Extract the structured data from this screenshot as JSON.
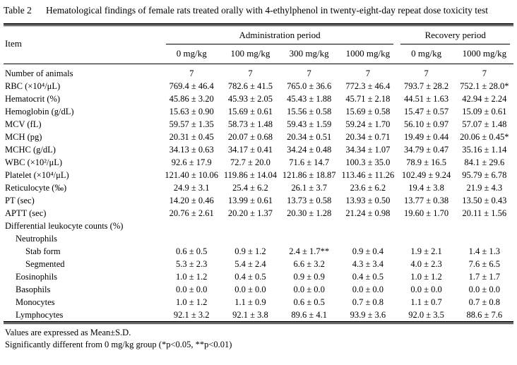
{
  "title": {
    "label": "Table 2",
    "text": "Hematological findings of female rats treated orally with 4-ethylphenol in twenty-eight-day repeat dose toxicity test"
  },
  "header": {
    "item_label": "Item",
    "groups": [
      {
        "label": "Administration period",
        "columns": [
          "0 mg/kg",
          "100 mg/kg",
          "300 mg/kg",
          "1000 mg/kg"
        ]
      },
      {
        "label": "Recovery period",
        "columns": [
          "0 mg/kg",
          "1000 mg/kg"
        ]
      }
    ]
  },
  "rows": [
    {
      "label": "Number of animals",
      "indent": 0,
      "values": [
        "7",
        "7",
        "7",
        "7",
        "7",
        "7"
      ]
    },
    {
      "label": "RBC (×10⁴/μL)",
      "indent": 0,
      "values": [
        "769.4 ± 46.4",
        "782.6 ± 41.5",
        "765.0 ± 36.6",
        "772.3 ± 46.4",
        "793.7 ± 28.2",
        "752.1 ± 28.0*"
      ]
    },
    {
      "label": "Hematocrit (%)",
      "indent": 0,
      "values": [
        "45.86 ± 3.20",
        "45.93 ± 2.05",
        "45.43 ± 1.88",
        "45.71 ± 2.18",
        "44.51 ± 1.63",
        "42.94 ± 2.24"
      ]
    },
    {
      "label": "Hemoglobin (g/dL)",
      "indent": 0,
      "values": [
        "15.63 ± 0.90",
        "15.69 ± 0.61",
        "15.56 ± 0.58",
        "15.69 ± 0.58",
        "15.47 ± 0.57",
        "15.09 ± 0.61"
      ]
    },
    {
      "label": "MCV (fL)",
      "indent": 0,
      "values": [
        "59.57 ± 1.35",
        "58.73 ± 1.48",
        "59.43 ± 1.59",
        "59.24 ± 1.70",
        "56.10 ± 0.97",
        "57.07 ± 1.48"
      ]
    },
    {
      "label": "MCH (pg)",
      "indent": 0,
      "values": [
        "20.31 ± 0.45",
        "20.07 ± 0.68",
        "20.34 ± 0.51",
        "20.34 ± 0.71",
        "19.49 ± 0.44",
        "20.06 ± 0.45*"
      ]
    },
    {
      "label": "MCHC (g/dL)",
      "indent": 0,
      "values": [
        "34.13 ± 0.63",
        "34.17 ± 0.41",
        "34.24 ± 0.48",
        "34.34 ± 1.07",
        "34.79 ± 0.47",
        "35.16 ± 1.14"
      ]
    },
    {
      "label": "WBC (×10²/μL)",
      "indent": 0,
      "values": [
        "92.6 ± 17.9",
        "72.7 ± 20.0",
        "71.6 ± 14.7",
        "100.3 ± 35.0",
        "78.9 ± 16.5",
        "84.1 ± 29.6"
      ]
    },
    {
      "label": "Platelet (×10⁴/μL)",
      "indent": 0,
      "values": [
        "121.40 ± 10.06",
        "119.86 ± 14.04",
        "121.86 ± 18.87",
        "113.46 ± 11.26",
        "102.49 ± 9.24",
        "95.79 ± 6.78"
      ]
    },
    {
      "label": "Reticulocyte (‰)",
      "indent": 0,
      "values": [
        "24.9 ± 3.1",
        "25.4 ± 6.2",
        "26.1 ± 3.7",
        "23.6 ± 6.2",
        "19.4 ± 3.8",
        "21.9 ± 4.3"
      ]
    },
    {
      "label": "PT (sec)",
      "indent": 0,
      "values": [
        "14.20 ± 0.46",
        "13.99 ± 0.61",
        "13.73 ± 0.58",
        "13.93 ± 0.50",
        "13.77 ± 0.38",
        "13.50 ± 0.43"
      ]
    },
    {
      "label": "APTT (sec)",
      "indent": 0,
      "values": [
        "20.76 ± 2.61",
        "20.20 ± 1.37",
        "20.30 ± 1.28",
        "21.24 ± 0.98",
        "19.60 ± 1.70",
        "20.11 ± 1.56"
      ]
    },
    {
      "label": "Differential leukocyte counts (%)",
      "indent": 0,
      "values": [
        "",
        "",
        "",
        "",
        "",
        ""
      ]
    },
    {
      "label": "Neutrophils",
      "indent": 1,
      "values": [
        "",
        "",
        "",
        "",
        "",
        ""
      ]
    },
    {
      "label": "Stab form",
      "indent": 2,
      "values": [
        "0.6 ± 0.5",
        "0.9 ± 1.2",
        "2.4 ± 1.7**",
        "0.9 ± 0.4",
        "1.9 ± 2.1",
        "1.4 ± 1.3"
      ]
    },
    {
      "label": "Segmented",
      "indent": 2,
      "values": [
        "5.3 ± 2.3",
        "5.4 ± 2.4",
        "6.6 ± 3.2",
        "4.3 ± 3.4",
        "4.0 ± 2.3",
        "7.6 ± 6.5"
      ]
    },
    {
      "label": "Eosinophils",
      "indent": 1,
      "values": [
        "1.0 ± 1.2",
        "0.4 ± 0.5",
        "0.9 ± 0.9",
        "0.4 ± 0.5",
        "1.0 ± 1.2",
        "1.7 ± 1.7"
      ]
    },
    {
      "label": "Basophils",
      "indent": 1,
      "values": [
        "0.0 ± 0.0",
        "0.0 ± 0.0",
        "0.0 ± 0.0",
        "0.0 ± 0.0",
        "0.0 ± 0.0",
        "0.0 ± 0.0"
      ]
    },
    {
      "label": "Monocytes",
      "indent": 1,
      "values": [
        "1.0 ± 1.2",
        "1.1 ± 0.9",
        "0.6 ± 0.5",
        "0.7 ± 0.8",
        "1.1 ± 0.7",
        "0.7 ± 0.8"
      ]
    },
    {
      "label": "Lymphocytes",
      "indent": 1,
      "values": [
        "92.1 ± 3.2",
        "92.1 ± 3.8",
        "89.6 ± 4.1",
        "93.9 ± 3.6",
        "92.0 ± 3.5",
        "88.6 ± 7.6"
      ]
    }
  ],
  "footnotes": [
    "Values are expressed as Mean±S.D.",
    "Significantly different from 0 mg/kg group (*p<0.05, **p<0.01)"
  ]
}
